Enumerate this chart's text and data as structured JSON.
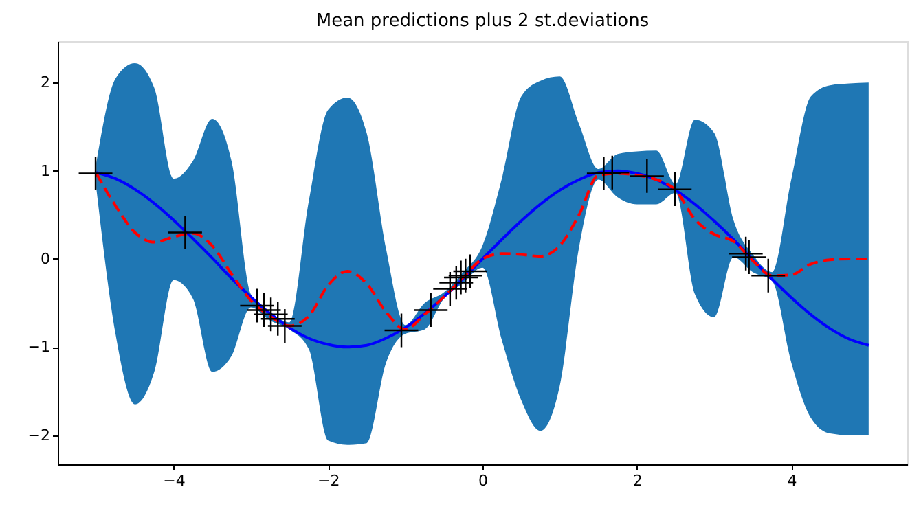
{
  "chart_data": {
    "type": "line",
    "title": "Mean predictions plus 2 st.deviations",
    "x": [
      -5,
      -4.75,
      -4.5,
      -4.25,
      -4,
      -3.75,
      -3.5,
      -3.25,
      -3,
      -2.75,
      -2.5,
      -2.25,
      -2,
      -1.75,
      -1.5,
      -1.25,
      -1,
      -0.75,
      -0.5,
      -0.25,
      0,
      0.25,
      0.5,
      0.75,
      1,
      1.25,
      1.5,
      1.75,
      2,
      2.25,
      2.5,
      2.75,
      3,
      3.25,
      3.5,
      3.75,
      4,
      4.25,
      4.5,
      4.75,
      5
    ],
    "series": [
      {
        "color": "#0000ff",
        "line_style": "solid",
        "values": [
          0.98,
          0.91,
          0.79,
          0.63,
          0.44,
          0.23,
          0.01,
          -0.22,
          -0.43,
          -0.62,
          -0.78,
          -0.9,
          -0.97,
          -1.0,
          -0.98,
          -0.9,
          -0.78,
          -0.62,
          -0.43,
          -0.22,
          0,
          0.22,
          0.43,
          0.62,
          0.78,
          0.9,
          0.98,
          1.0,
          0.97,
          0.9,
          0.78,
          0.62,
          0.43,
          0.22,
          -0.01,
          -0.23,
          -0.44,
          -0.63,
          -0.79,
          -0.91,
          -0.98
        ]
      },
      {
        "color": "#ff0000",
        "line_style": "dashed",
        "values": [
          0.97,
          0.6,
          0.3,
          0.19,
          0.25,
          0.29,
          0.15,
          -0.17,
          -0.47,
          -0.65,
          -0.76,
          -0.65,
          -0.3,
          -0.14,
          -0.28,
          -0.6,
          -0.8,
          -0.63,
          -0.43,
          -0.21,
          0.0,
          0.06,
          0.05,
          0.03,
          0.15,
          0.5,
          0.95,
          0.97,
          0.95,
          0.9,
          0.78,
          0.45,
          0.28,
          0.2,
          -0.02,
          -0.19,
          -0.18,
          -0.06,
          -0.01,
          0.0,
          0.0
        ],
        "lower": [
          0.8,
          -0.86,
          -1.65,
          -1.28,
          -0.24,
          -0.45,
          -1.28,
          -1.1,
          -0.55,
          -0.7,
          -0.8,
          -1.02,
          -2.06,
          -2.11,
          -2.09,
          -1.18,
          -0.85,
          -0.8,
          -0.45,
          -0.27,
          -0.1,
          -0.92,
          -1.6,
          -1.95,
          -1.44,
          0.13,
          0.9,
          0.7,
          0.62,
          0.62,
          0.75,
          -0.4,
          -0.66,
          0.02,
          -0.15,
          -0.25,
          -1.18,
          -1.8,
          -1.98,
          -2.0,
          -2.0
        ],
        "upper": [
          1.09,
          2.05,
          2.22,
          1.94,
          0.91,
          1.11,
          1.59,
          1.11,
          -0.4,
          -0.6,
          -0.72,
          0.65,
          1.69,
          1.83,
          1.43,
          0.12,
          -0.75,
          -0.5,
          -0.38,
          -0.15,
          0.15,
          0.91,
          1.84,
          2.02,
          2.07,
          1.53,
          1.02,
          1.19,
          1.22,
          1.23,
          0.85,
          1.58,
          1.43,
          0.44,
          0.05,
          -0.15,
          0.91,
          1.84,
          1.97,
          1.99,
          2.0
        ]
      },
      {
        "type": "scatter",
        "color": "#000000",
        "marker": "cross",
        "x": [
          -5.01,
          -3.85,
          -2.92,
          -2.83,
          -2.74,
          -2.65,
          -2.56,
          -1.05,
          -0.67,
          -0.42,
          -0.34,
          -0.28,
          -0.22,
          -0.16,
          1.57,
          1.68,
          2.13,
          2.49,
          3.41,
          3.45,
          3.7
        ],
        "values": [
          0.97,
          0.3,
          -0.53,
          -0.58,
          -0.63,
          -0.68,
          -0.76,
          -0.81,
          -0.58,
          -0.34,
          -0.27,
          -0.21,
          -0.19,
          -0.14,
          0.97,
          0.98,
          0.94,
          0.79,
          0.06,
          0.02,
          -0.19
        ]
      }
    ],
    "xlim": [
      -5.5,
      5.5
    ],
    "xticks": [
      {
        "value": -4,
        "label": "−4"
      },
      {
        "value": -2,
        "label": "−2"
      },
      0,
      2,
      4
    ],
    "ylim": [
      -2.33,
      2.47
    ],
    "yticks": [
      {
        "value": -2,
        "label": "−2"
      },
      {
        "value": -1,
        "label": "−1"
      },
      0,
      1,
      2
    ],
    "grid": false,
    "legend": false
  }
}
